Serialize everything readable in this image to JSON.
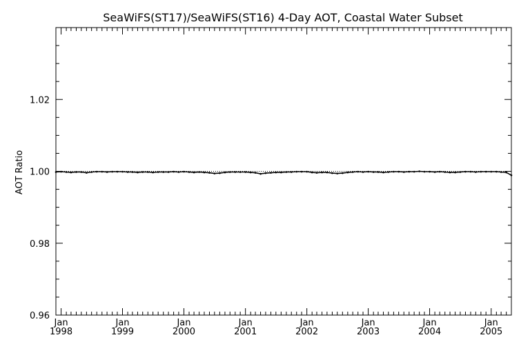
{
  "chart_data": {
    "type": "line",
    "title": "SeaWiFS(ST17)/SeaWiFS(ST16) 4-Day AOT, Coastal Water Subset",
    "xlabel": "",
    "ylabel": "AOT Ratio",
    "xlim": [
      "1997-12-01",
      "2005-05-01"
    ],
    "ylim": [
      0.96,
      1.04
    ],
    "y_ticks": [
      0.96,
      0.98,
      1.0,
      1.02
    ],
    "y_tick_labels": [
      "0.96",
      "0.98",
      "1.00",
      "1.02"
    ],
    "x_ticks": [
      {
        "date": "1998-01-01",
        "month": "Jan",
        "year": "1998"
      },
      {
        "date": "1999-01-01",
        "month": "Jan",
        "year": "1999"
      },
      {
        "date": "2000-01-01",
        "month": "Jan",
        "year": "2000"
      },
      {
        "date": "2001-01-01",
        "month": "Jan",
        "year": "2001"
      },
      {
        "date": "2002-01-01",
        "month": "Jan",
        "year": "2002"
      },
      {
        "date": "2003-01-01",
        "month": "Jan",
        "year": "2003"
      },
      {
        "date": "2004-01-01",
        "month": "Jan",
        "year": "2004"
      },
      {
        "date": "2005-01-01",
        "month": "Jan",
        "year": "2005"
      }
    ],
    "reference_line": {
      "y": 1.0,
      "style": "dotted"
    },
    "grid": false,
    "series": [
      {
        "x": [
          "1997-12-01",
          "1998-01-01",
          "1998-02-01",
          "1998-03-01",
          "1998-04-01",
          "1998-05-01",
          "1998-06-01",
          "1998-07-01",
          "1998-08-01",
          "1998-09-01",
          "1998-10-01",
          "1998-11-01",
          "1998-12-01",
          "1999-01-01",
          "1999-02-01",
          "1999-03-01",
          "1999-04-01",
          "1999-05-01",
          "1999-06-01",
          "1999-07-01",
          "1999-08-01",
          "1999-09-01",
          "1999-10-01",
          "1999-11-01",
          "1999-12-01",
          "2000-01-01",
          "2000-02-01",
          "2000-03-01",
          "2000-04-01",
          "2000-05-01",
          "2000-06-01",
          "2000-07-01",
          "2000-08-01",
          "2000-09-01",
          "2000-10-01",
          "2000-11-01",
          "2000-12-01",
          "2001-01-01",
          "2001-02-01",
          "2001-03-01",
          "2001-04-01",
          "2001-05-01",
          "2001-06-01",
          "2001-07-01",
          "2001-08-01",
          "2001-09-01",
          "2001-10-01",
          "2001-11-01",
          "2001-12-01",
          "2002-01-01",
          "2002-02-01",
          "2002-03-01",
          "2002-04-01",
          "2002-05-01",
          "2002-06-01",
          "2002-07-01",
          "2002-08-01",
          "2002-09-01",
          "2002-10-01",
          "2002-11-01",
          "2002-12-01",
          "2003-01-01",
          "2003-02-01",
          "2003-03-01",
          "2003-04-01",
          "2003-05-01",
          "2003-06-01",
          "2003-07-01",
          "2003-08-01",
          "2003-09-01",
          "2003-10-01",
          "2003-11-01",
          "2003-12-01",
          "2004-01-01",
          "2004-02-01",
          "2004-03-01",
          "2004-04-01",
          "2004-05-01",
          "2004-06-01",
          "2004-07-01",
          "2004-08-01",
          "2004-09-01",
          "2004-10-01",
          "2004-11-01",
          "2004-12-01",
          "2005-01-01",
          "2005-02-01",
          "2005-03-01",
          "2005-04-01",
          "2005-05-01"
        ],
        "y": [
          0.9998,
          0.9999,
          0.9998,
          0.9997,
          0.9998,
          0.9998,
          0.9996,
          0.9998,
          0.9999,
          0.9999,
          0.9998,
          0.9999,
          0.9999,
          0.9999,
          0.9998,
          0.9998,
          0.9997,
          0.9998,
          0.9998,
          0.9997,
          0.9998,
          0.9998,
          0.9998,
          0.9999,
          0.9998,
          0.9999,
          0.9998,
          0.9997,
          0.9998,
          0.9997,
          0.9996,
          0.9994,
          0.9995,
          0.9997,
          0.9998,
          0.9998,
          0.9998,
          0.9998,
          0.9997,
          0.9996,
          0.9993,
          0.9995,
          0.9996,
          0.9997,
          0.9997,
          0.9998,
          0.9998,
          0.9999,
          0.9999,
          0.9999,
          0.9997,
          0.9996,
          0.9997,
          0.9997,
          0.9995,
          0.9994,
          0.9995,
          0.9997,
          0.9998,
          0.9999,
          0.9998,
          0.9999,
          0.9998,
          0.9998,
          0.9997,
          0.9998,
          0.9999,
          0.9999,
          0.9998,
          0.9999,
          0.9999,
          1.0,
          0.9999,
          0.9999,
          0.9998,
          0.9999,
          0.9998,
          0.9997,
          0.9997,
          0.9998,
          0.9999,
          0.9999,
          0.9998,
          0.9999,
          0.9999,
          0.9999,
          0.9999,
          0.9998,
          0.9997,
          0.9989
        ]
      }
    ]
  }
}
